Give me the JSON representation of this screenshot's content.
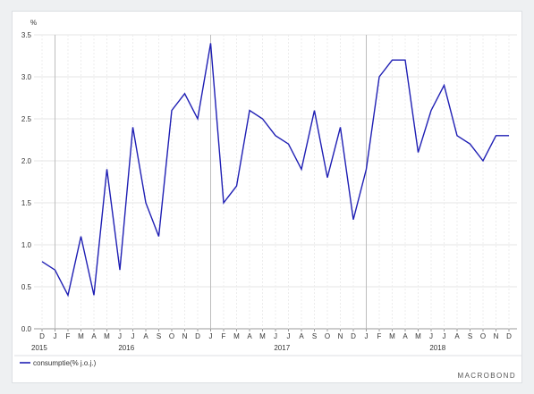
{
  "chart_data": {
    "type": "line",
    "yunit": "%",
    "ylim": [
      0,
      3.5
    ],
    "yticks": [
      "0.0",
      "0.5",
      "1.0",
      "1.5",
      "2.0",
      "2.5",
      "3.0",
      "3.5"
    ],
    "grid": true,
    "months": [
      "D",
      "J",
      "F",
      "M",
      "A",
      "M",
      "J",
      "J",
      "A",
      "S",
      "O",
      "N",
      "D",
      "J",
      "F",
      "M",
      "A",
      "M",
      "J",
      "J",
      "A",
      "S",
      "O",
      "N",
      "D",
      "J",
      "F",
      "M",
      "A",
      "M",
      "J",
      "J",
      "A",
      "S",
      "O",
      "N",
      "D"
    ],
    "year_labels": [
      {
        "label": "2015",
        "index": 0
      },
      {
        "label": "2016",
        "index": 6.5
      },
      {
        "label": "2017",
        "index": 18.5
      },
      {
        "label": "2018",
        "index": 30.5
      }
    ],
    "series": [
      {
        "name": "consumptie(% j.o.j.)",
        "color": "#1f1fb4",
        "values": [
          0.8,
          0.7,
          0.4,
          1.1,
          0.4,
          1.9,
          0.7,
          2.4,
          1.5,
          1.1,
          2.6,
          2.8,
          2.5,
          3.4,
          1.5,
          1.7,
          2.6,
          2.5,
          2.3,
          2.2,
          1.9,
          2.6,
          1.8,
          2.4,
          1.3,
          1.9,
          3.0,
          3.2,
          3.2,
          2.1,
          2.6,
          2.9,
          2.3,
          2.2,
          2.0,
          2.3,
          2.3
        ]
      }
    ],
    "legend_position": "bottom-left"
  },
  "branding": {
    "logo": "MACROBOND"
  }
}
